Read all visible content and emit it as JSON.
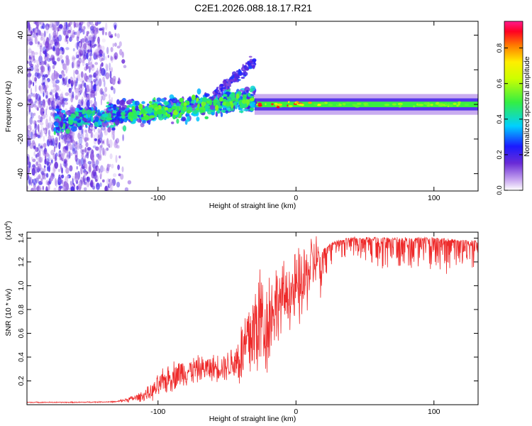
{
  "title": "C2E1.2026.088.18.17.R21",
  "colors": {
    "signal_line": "#ee2a2a",
    "noise_purple": "#7d2bd6",
    "axis": "#000000"
  },
  "chart_data": [
    {
      "type": "heatmap",
      "xlabel": "Height of straight line (km)",
      "ylabel": "Frequency (Hz)",
      "xlim": [
        -195,
        132
      ],
      "ylim": [
        -50,
        48
      ],
      "x_ticks": [
        -100,
        0,
        100
      ],
      "y_ticks": [
        40,
        20,
        0,
        -20,
        -40
      ],
      "colorbar": {
        "label": "Normalized spectral amplitude",
        "range": [
          0,
          0.95
        ],
        "ticks": [
          0.0,
          0.2,
          0.4,
          0.6,
          0.8
        ],
        "colormap": "violet-blue-cyan-green-yellow-red-magenta"
      },
      "features": [
        {
          "name": "broadband noise",
          "x_range": [
            -195,
            -120
          ],
          "freq_range": [
            -50,
            48
          ],
          "amplitude": 0.1
        },
        {
          "name": "main echo trace",
          "x_range": [
            -175,
            -30
          ],
          "freq_start": -10,
          "freq_end": 3,
          "amplitude": 0.35
        },
        {
          "name": "secondary trace",
          "x_range": [
            -60,
            -30
          ],
          "freq_start": 5,
          "freq_end": 25,
          "amplitude": 0.2
        },
        {
          "name": "strong narrow line",
          "x_range": [
            -30,
            132
          ],
          "freq": 0,
          "amplitude": 0.5
        }
      ]
    },
    {
      "type": "line",
      "xlabel": "Height of straight line (km)",
      "ylabel": "SNR (10 * v/v)",
      "y_scale_label": "(x10",
      "y_scale_exp": "4",
      "y_scale_close": ")",
      "xlim": [
        -195,
        132
      ],
      "ylim": [
        0,
        1.45
      ],
      "x_ticks": [
        -100,
        0,
        100
      ],
      "y_ticks": [
        0.2,
        0.4,
        0.6,
        0.8,
        1.0,
        1.2,
        1.4
      ],
      "series": [
        {
          "name": "SNR",
          "x": [
            -195,
            -160,
            -130,
            -115,
            -105,
            -100,
            -95,
            -90,
            -85,
            -80,
            -75,
            -70,
            -60,
            -50,
            -45,
            -40,
            -35,
            -30,
            -27,
            -25,
            -22,
            -20,
            -15,
            -10,
            -5,
            0,
            5,
            10,
            20,
            25,
            30,
            40,
            60,
            80,
            100,
            120,
            132
          ],
          "values": [
            0.02,
            0.02,
            0.025,
            0.06,
            0.1,
            0.15,
            0.2,
            0.24,
            0.26,
            0.28,
            0.29,
            0.3,
            0.31,
            0.33,
            0.36,
            0.4,
            0.52,
            0.64,
            0.7,
            0.75,
            0.62,
            0.72,
            0.85,
            0.88,
            0.95,
            0.95,
            1.0,
            1.15,
            1.3,
            1.35,
            1.38,
            1.4,
            1.4,
            1.4,
            1.4,
            1.38,
            1.37
          ],
          "spike_amplitude": [
            0.005,
            0.005,
            0.006,
            0.04,
            0.08,
            0.12,
            0.14,
            0.15,
            0.15,
            0.14,
            0.14,
            0.13,
            0.13,
            0.15,
            0.2,
            0.35,
            0.5,
            0.55,
            0.6,
            0.6,
            0.45,
            0.55,
            0.4,
            0.35,
            0.35,
            0.4,
            0.4,
            0.35,
            0.15,
            0.1,
            0.08,
            0.06,
            0.12,
            0.12,
            0.14,
            0.12,
            0.1
          ]
        }
      ]
    }
  ]
}
